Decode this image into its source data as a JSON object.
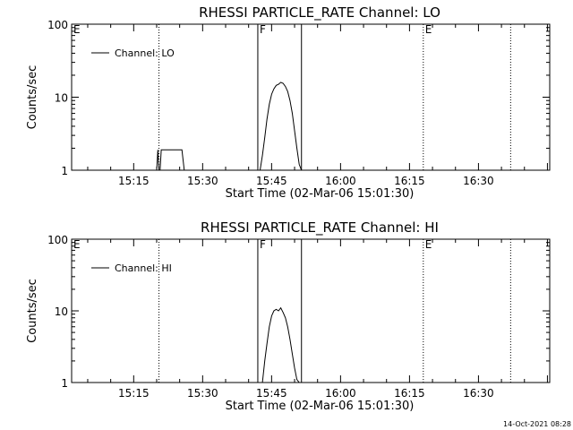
{
  "footer": {
    "timestamp": "14-Oct-2021 08:28"
  },
  "chart_data": [
    {
      "type": "line",
      "title": "RHESSI PARTICLE_RATE Channel: LO",
      "xlabel": "Start Time (02-Mar-06 15:01:30)",
      "ylabel": "Counts/sec",
      "y_scale": "log",
      "ylim": [
        1,
        100
      ],
      "xlim": [
        "15:01:30",
        "16:45:30"
      ],
      "grid": false,
      "legend": {
        "position": "top-left",
        "entries": [
          "Channel: LO"
        ]
      },
      "x_tick_labels": [
        "15:15",
        "15:30",
        "15:45",
        "16:00",
        "16:15",
        "16:30"
      ],
      "y_tick_labels": [
        "1",
        "10",
        "100"
      ],
      "markers": [
        {
          "label": "E",
          "time": "15:01:30",
          "style": "dotted"
        },
        {
          "time": "15:20:30",
          "style": "dotted"
        },
        {
          "label": "F",
          "time": "15:42:00",
          "style": "solid"
        },
        {
          "time": "15:51:30",
          "style": "solid"
        },
        {
          "label": "E",
          "time": "16:18:00",
          "style": "dotted"
        },
        {
          "time": "16:37:00",
          "style": "dotted"
        }
      ],
      "series": [
        {
          "name": "Channel: LO",
          "x": [
            "15:20:00",
            "15:20:15",
            "15:20:30",
            "15:20:45",
            "15:21:00",
            "15:21:30",
            "15:22:00",
            "15:22:30",
            "15:23:00",
            "15:24:00",
            "15:25:00",
            "15:25:30",
            "15:26:00",
            "15:26:30",
            "15:42:30",
            "15:43:00",
            "15:43:30",
            "15:44:00",
            "15:44:30",
            "15:45:00",
            "15:45:30",
            "15:46:00",
            "15:46:30",
            "15:47:00",
            "15:47:30",
            "15:48:00",
            "15:48:30",
            "15:49:00",
            "15:49:30",
            "15:50:00",
            "15:50:30",
            "15:51:00",
            "15:51:30"
          ],
          "y": [
            1,
            1.9,
            1,
            1,
            1.9,
            1.9,
            1.9,
            1.9,
            1.9,
            1.9,
            1.9,
            1.9,
            1,
            1,
            1,
            1.6,
            2.8,
            5.0,
            8.0,
            11,
            13,
            14.5,
            15,
            16,
            15.5,
            14,
            12,
            9,
            6,
            3.5,
            2.0,
            1.2,
            1
          ]
        }
      ]
    },
    {
      "type": "line",
      "title": "RHESSI PARTICLE_RATE Channel: HI",
      "xlabel": "Start Time (02-Mar-06 15:01:30)",
      "ylabel": "Counts/sec",
      "y_scale": "log",
      "ylim": [
        1,
        100
      ],
      "xlim": [
        "15:01:30",
        "16:45:30"
      ],
      "grid": false,
      "legend": {
        "position": "top-left",
        "entries": [
          "Channel: HI"
        ]
      },
      "x_tick_labels": [
        "15:15",
        "15:30",
        "15:45",
        "16:00",
        "16:15",
        "16:30"
      ],
      "y_tick_labels": [
        "1",
        "10",
        "100"
      ],
      "markers": [
        {
          "label": "E",
          "time": "15:01:30",
          "style": "dotted"
        },
        {
          "time": "15:20:30",
          "style": "dotted"
        },
        {
          "label": "F",
          "time": "15:42:00",
          "style": "solid"
        },
        {
          "time": "15:51:30",
          "style": "solid"
        },
        {
          "label": "E",
          "time": "16:18:00",
          "style": "dotted"
        },
        {
          "time": "16:37:00",
          "style": "dotted"
        }
      ],
      "series": [
        {
          "name": "Channel: HI",
          "x": [
            "15:43:00",
            "15:43:30",
            "15:44:00",
            "15:44:30",
            "15:45:00",
            "15:45:30",
            "15:46:00",
            "15:46:30",
            "15:47:00",
            "15:47:30",
            "15:48:00",
            "15:48:30",
            "15:49:00",
            "15:49:30",
            "15:50:00",
            "15:50:30",
            "15:51:00"
          ],
          "y": [
            1,
            2.0,
            3.5,
            6,
            8.5,
            10,
            10.5,
            10,
            11,
            9.5,
            8,
            6,
            4,
            2.5,
            1.6,
            1.1,
            1
          ]
        }
      ]
    }
  ]
}
